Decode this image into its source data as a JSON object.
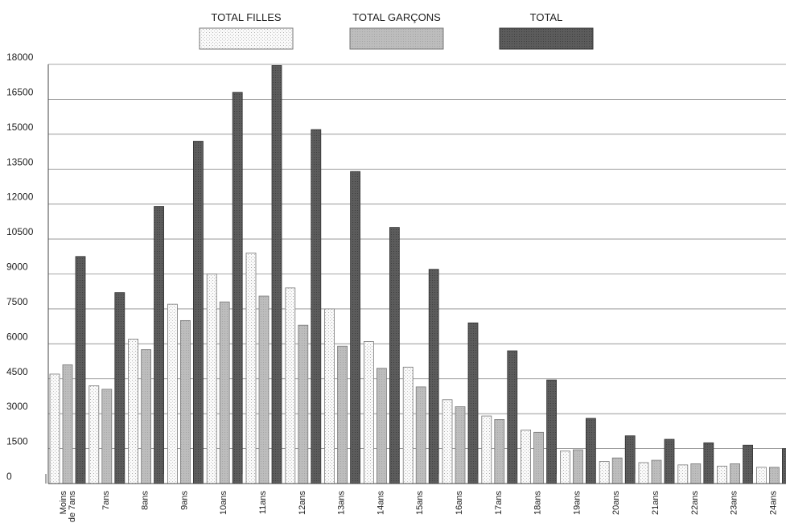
{
  "chart_data": {
    "type": "bar",
    "title": "",
    "xlabel": "",
    "ylabel": "",
    "ylim": [
      0,
      18000
    ],
    "yticks": [
      0,
      1500,
      3000,
      4500,
      6000,
      7500,
      9000,
      10500,
      12000,
      13500,
      15000,
      16500,
      18000
    ],
    "grid": true,
    "legend_position": "top",
    "categories": [
      "Moins de 7ans",
      "7ans",
      "8ans",
      "9ans",
      "10ans",
      "11ans",
      "12ans",
      "13ans",
      "14ans",
      "15ans",
      "16ans",
      "17ans",
      "18ans",
      "19ans",
      "20ans",
      "21ans",
      "22ans",
      "23ans",
      "24ans"
    ],
    "series": [
      {
        "name": "TOTAL FILLES",
        "color": "#f3f3f3",
        "values": [
          4700,
          4200,
          6200,
          7700,
          9000,
          9900,
          8400,
          7500,
          6100,
          5000,
          3600,
          2900,
          2300,
          1400,
          950,
          900,
          800,
          750,
          700
        ]
      },
      {
        "name": "TOTAL GARÇONS",
        "color": "#b8b8b8",
        "values": [
          5100,
          4050,
          5750,
          7000,
          7800,
          8050,
          6800,
          5900,
          4950,
          4150,
          3300,
          2750,
          2200,
          1450,
          1100,
          1000,
          850,
          850,
          700
        ]
      },
      {
        "name": "TOTAL",
        "color": "#5a5a5a",
        "values": [
          9750,
          8200,
          11900,
          14700,
          16800,
          17950,
          15200,
          13400,
          11000,
          9200,
          6900,
          5700,
          4450,
          2800,
          2050,
          1900,
          1750,
          1650,
          1500
        ]
      }
    ]
  }
}
